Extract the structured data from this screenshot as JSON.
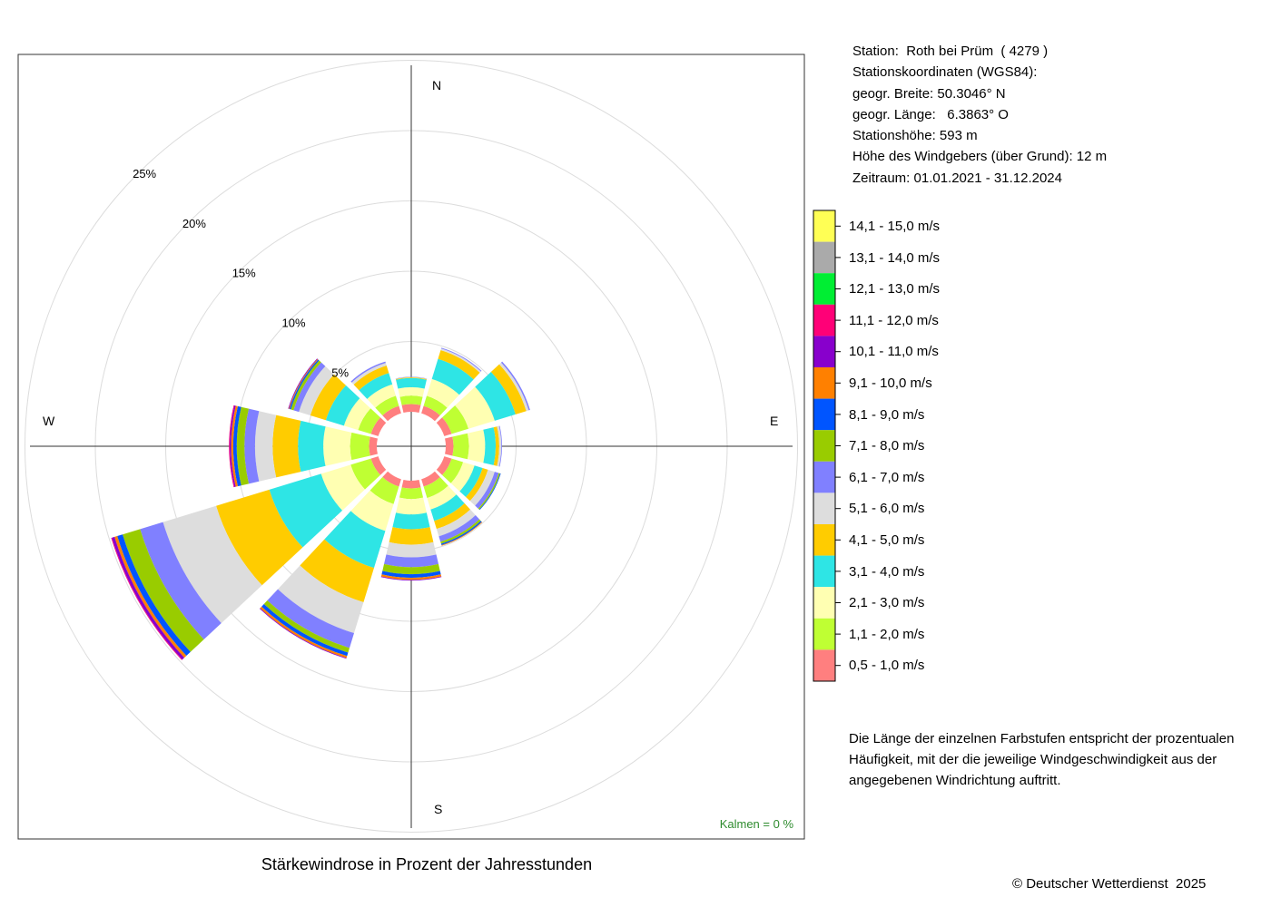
{
  "info": {
    "station": "Station:  Roth bei Prüm  ( 4279 )",
    "coords_title": "Stationskoordinaten (WGS84):",
    "lat": "geogr. Breite: 50.3046° N",
    "lon": "geogr. Länge:   6.3863° O",
    "height": "Stationshöhe: 593 m",
    "sensor": "Höhe des Windgebers (über Grund): 12 m",
    "period": "Zeitraum: 01.01.2021 - 31.12.2024"
  },
  "caption": "Stärkewindrose in Prozent der Jahresstunden",
  "note": "Die Länge der einzelnen Farbstufen entspricht der prozentualen Häufigkeit, mit der die jeweilige Windgeschwindigkeit aus der angegebenen Windrichtung auftritt.",
  "copyright": "© Deutscher Wetterdienst  2025",
  "calm_label": "Kalmen  =  0 %",
  "chart_data": {
    "type": "wind-rose",
    "compass": [
      "N",
      "E",
      "S",
      "W"
    ],
    "ring_labels": [
      "5%",
      "10%",
      "15%",
      "20%",
      "25%"
    ],
    "ring_values": [
      5,
      10,
      15,
      20,
      25
    ],
    "directions_deg": [
      0,
      30,
      60,
      90,
      120,
      150,
      180,
      210,
      240,
      270,
      300,
      330
    ],
    "classes": [
      {
        "label": "0,5 - 1,0 m/s",
        "color": "#ff7f7f"
      },
      {
        "label": "1,1 - 2,0 m/s",
        "color": "#bfff33"
      },
      {
        "label": "2,1 - 3,0 m/s",
        "color": "#ffffb2"
      },
      {
        "label": "3,1 - 4,0 m/s",
        "color": "#2ee5e5"
      },
      {
        "label": "4,1 - 5,0 m/s",
        "color": "#ffcc00"
      },
      {
        "label": "5,1 - 6,0 m/s",
        "color": "#dddddd"
      },
      {
        "label": "6,1 - 7,0 m/s",
        "color": "#8080ff"
      },
      {
        "label": "7,1 - 8,0 m/s",
        "color": "#99cc00"
      },
      {
        "label": "8,1 - 9,0 m/s",
        "color": "#0055ff"
      },
      {
        "label": "9,1 - 10,0 m/s",
        "color": "#ff8000"
      },
      {
        "label": "10,1 - 11,0 m/s",
        "color": "#8800cc"
      },
      {
        "label": "11,1 - 12,0 m/s",
        "color": "#ff0077"
      },
      {
        "label": "12,1 - 13,0 m/s",
        "color": "#00ee33"
      },
      {
        "label": "13,1 - 14,0 m/s",
        "color": "#aaaaaa"
      },
      {
        "label": "14,1 - 15,0 m/s",
        "color": "#ffff55"
      }
    ],
    "sectors": [
      {
        "dir": 0,
        "values": [
          0.55,
          0.6,
          0.6,
          0.65,
          0.05,
          0.02,
          0.02,
          0.0,
          0.0,
          0.0,
          0.0,
          0.0,
          0.0,
          0.0,
          0.0
        ]
      },
      {
        "dir": 30,
        "values": [
          0.55,
          0.75,
          1.25,
          1.5,
          0.65,
          0.12,
          0.06,
          0.0,
          0.0,
          0.0,
          0.0,
          0.0,
          0.0,
          0.0,
          0.0
        ]
      },
      {
        "dir": 60,
        "values": [
          0.55,
          1.25,
          1.95,
          1.55,
          0.8,
          0.18,
          0.1,
          0.0,
          0.0,
          0.0,
          0.0,
          0.0,
          0.0,
          0.0,
          0.0
        ]
      },
      {
        "dir": 90,
        "values": [
          0.55,
          1.1,
          1.15,
          0.75,
          0.25,
          0.15,
          0.05,
          0.0,
          0.0,
          0.0,
          0.0,
          0.0,
          0.0,
          0.0,
          0.0
        ]
      },
      {
        "dir": 120,
        "values": [
          0.55,
          0.85,
          0.85,
          0.6,
          0.4,
          0.5,
          0.3,
          0.1,
          0.05,
          0.0,
          0.0,
          0.0,
          0.0,
          0.0,
          0.0
        ]
      },
      {
        "dir": 150,
        "values": [
          0.55,
          0.85,
          0.85,
          0.85,
          0.6,
          0.55,
          0.4,
          0.15,
          0.1,
          0.05,
          0.0,
          0.0,
          0.0,
          0.0,
          0.0
        ]
      },
      {
        "dir": 180,
        "values": [
          0.55,
          0.75,
          1.1,
          1.05,
          1.1,
          0.9,
          0.7,
          0.5,
          0.25,
          0.15,
          0.05,
          0.0,
          0.0,
          0.0,
          0.0
        ]
      },
      {
        "dir": 210,
        "values": [
          0.55,
          1.3,
          2.0,
          2.75,
          2.55,
          2.3,
          1.1,
          0.35,
          0.25,
          0.15,
          0.05,
          0.0,
          0.0,
          0.0,
          0.0
        ]
      },
      {
        "dir": 240,
        "values": [
          0.55,
          1.5,
          2.2,
          3.85,
          3.95,
          3.95,
          1.7,
          1.3,
          0.4,
          0.2,
          0.2,
          0.05,
          0.0,
          0.0,
          0.0
        ]
      },
      {
        "dir": 270,
        "values": [
          0.55,
          1.35,
          1.9,
          1.8,
          1.8,
          1.25,
          0.75,
          0.55,
          0.25,
          0.15,
          0.1,
          0.05,
          0.0,
          0.0,
          0.0
        ]
      },
      {
        "dir": 300,
        "values": [
          0.55,
          0.95,
          1.05,
          1.35,
          1.15,
          0.85,
          0.4,
          0.2,
          0.1,
          0.05,
          0.05,
          0.0,
          0.0,
          0.0,
          0.0
        ]
      },
      {
        "dir": 330,
        "values": [
          0.55,
          0.75,
          0.85,
          0.85,
          0.55,
          0.2,
          0.1,
          0.0,
          0.0,
          0.0,
          0.0,
          0.0,
          0.0,
          0.0,
          0.0
        ]
      }
    ],
    "calm_percent": 0
  }
}
